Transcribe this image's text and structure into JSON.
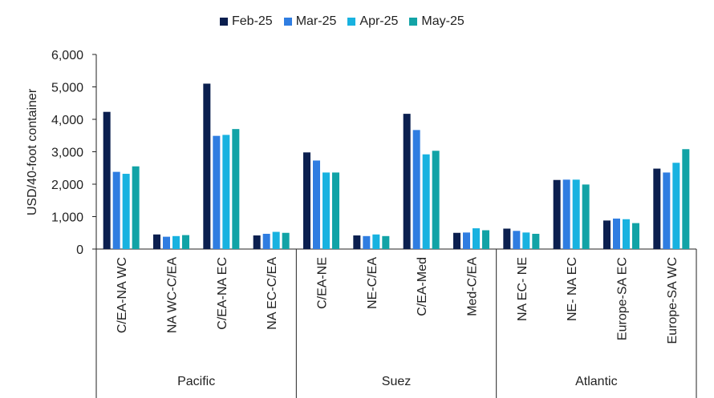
{
  "chart_data": {
    "type": "bar",
    "title": "",
    "ylabel": "USD/40-foot container",
    "ylim": [
      0,
      6000
    ],
    "yticks": [
      "0",
      "1,000",
      "2,000",
      "3,000",
      "4,000",
      "5,000",
      "6,000"
    ],
    "ytick_values": [
      0,
      1000,
      2000,
      3000,
      4000,
      5000,
      6000
    ],
    "categories": [
      "C/EA-NA WC",
      "NA WC-C/EA",
      "C/EA-NA EC",
      "NA EC-C/EA",
      "C/EA-NE",
      "NE-C/EA",
      "C/EA-Med",
      "Med-C/EA",
      "NA EC- NE",
      "NE- NA EC",
      "Europe-SA EC",
      "Europe-SA WC"
    ],
    "groups": [
      {
        "label": "Pacific",
        "start": 0,
        "end": 3
      },
      {
        "label": "Suez",
        "start": 4,
        "end": 7
      },
      {
        "label": "Atlantic",
        "start": 8,
        "end": 11
      }
    ],
    "legend_position": "top",
    "grid": false,
    "series": [
      {
        "name": "Feb-25",
        "color": "#0b1f4f",
        "values": [
          4230,
          450,
          5100,
          420,
          2980,
          420,
          4170,
          500,
          630,
          2130,
          880,
          2480
        ]
      },
      {
        "name": "Mar-25",
        "color": "#2f7de1",
        "values": [
          2380,
          380,
          3490,
          470,
          2730,
          400,
          3670,
          510,
          560,
          2140,
          940,
          2360
        ]
      },
      {
        "name": "Apr-25",
        "color": "#18b2e0",
        "values": [
          2320,
          400,
          3520,
          530,
          2360,
          450,
          2920,
          640,
          510,
          2140,
          920,
          2660
        ]
      },
      {
        "name": "May-25",
        "color": "#12a3a6",
        "values": [
          2550,
          430,
          3700,
          500,
          2360,
          400,
          3030,
          580,
          470,
          1990,
          800,
          3080
        ]
      }
    ]
  }
}
